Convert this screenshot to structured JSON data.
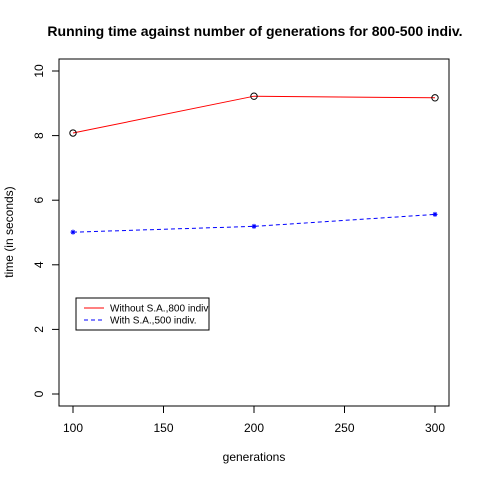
{
  "chart_data": {
    "type": "line",
    "title": "Running time against number of generations for 800-500 indiv.",
    "xlabel": "generations",
    "ylabel": "time (in seconds)",
    "x": [
      100,
      200,
      300
    ],
    "xlim": [
      100,
      300
    ],
    "ylim": [
      0,
      10
    ],
    "x_ticks": [
      100,
      150,
      200,
      250,
      300
    ],
    "y_ticks": [
      0,
      2,
      4,
      6,
      8,
      10
    ],
    "grid": false,
    "legend_position": "bottom-left",
    "series": [
      {
        "name": "Without S.A.,800 indiv.",
        "values": [
          8.08,
          9.22,
          9.17
        ],
        "color": "#ff0000",
        "line_style": "solid",
        "marker": "open-circle"
      },
      {
        "name": "With S.A.,500 indiv.",
        "values": [
          5.01,
          5.19,
          5.56
        ],
        "color": "#0000ff",
        "line_style": "dashed",
        "marker": "star"
      }
    ]
  }
}
